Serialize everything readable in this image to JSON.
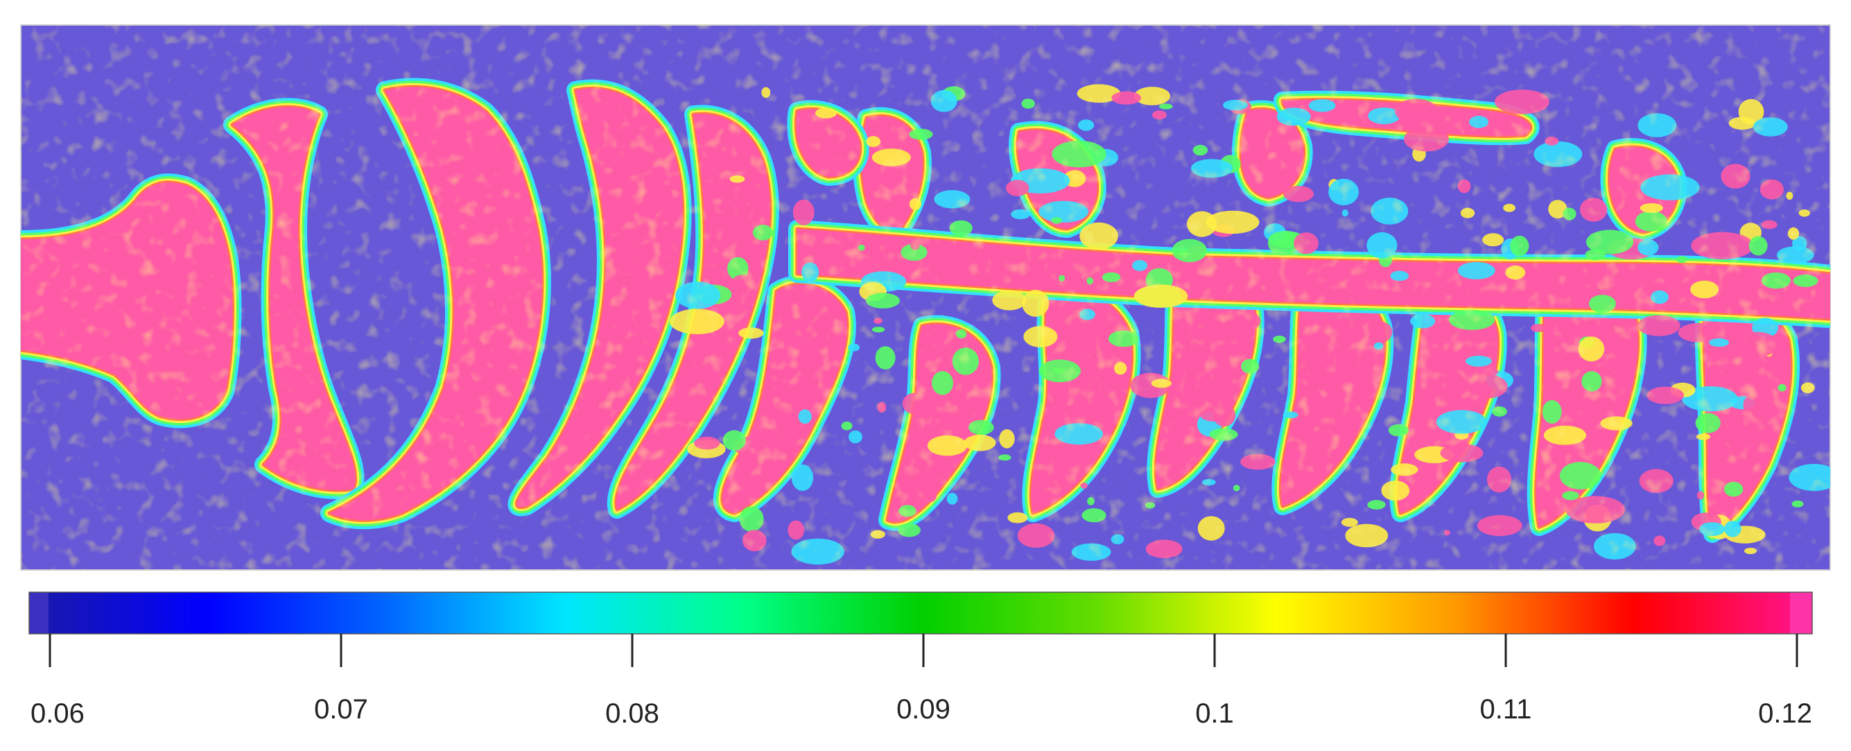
{
  "chart_data": {
    "type": "heatmap",
    "title": "",
    "xlabel": "",
    "ylabel": "",
    "grid": false,
    "legend": "colorbar-bottom",
    "colorbar": {
      "min": 0.06,
      "max": 0.12,
      "ticks": [
        0.06,
        0.07,
        0.08,
        0.09,
        0.1,
        0.11,
        0.12
      ],
      "tick_labels": [
        "0.06",
        "0.07",
        "0.08",
        "0.09",
        "0.1",
        "0.11",
        "0.12"
      ],
      "colormap": [
        "#1a1aa8",
        "#0000ff",
        "#0066ff",
        "#00e5ff",
        "#00ff88",
        "#00d000",
        "#66dd00",
        "#ffff00",
        "#ff9900",
        "#ff0000",
        "#ff1493"
      ],
      "below_range_color": "#3a2fbf",
      "above_range_color": "#ff33a8"
    },
    "field": {
      "background_value": 0.06,
      "background_color": "#6658d6",
      "description_colors": {
        "low": "#6658d6",
        "mid_cyan": "#33e0ff",
        "mid_green": "#55ff66",
        "mid_yellow": "#ffee44",
        "high_orange": "#ff7744",
        "high": "#ff5aa6"
      }
    }
  }
}
